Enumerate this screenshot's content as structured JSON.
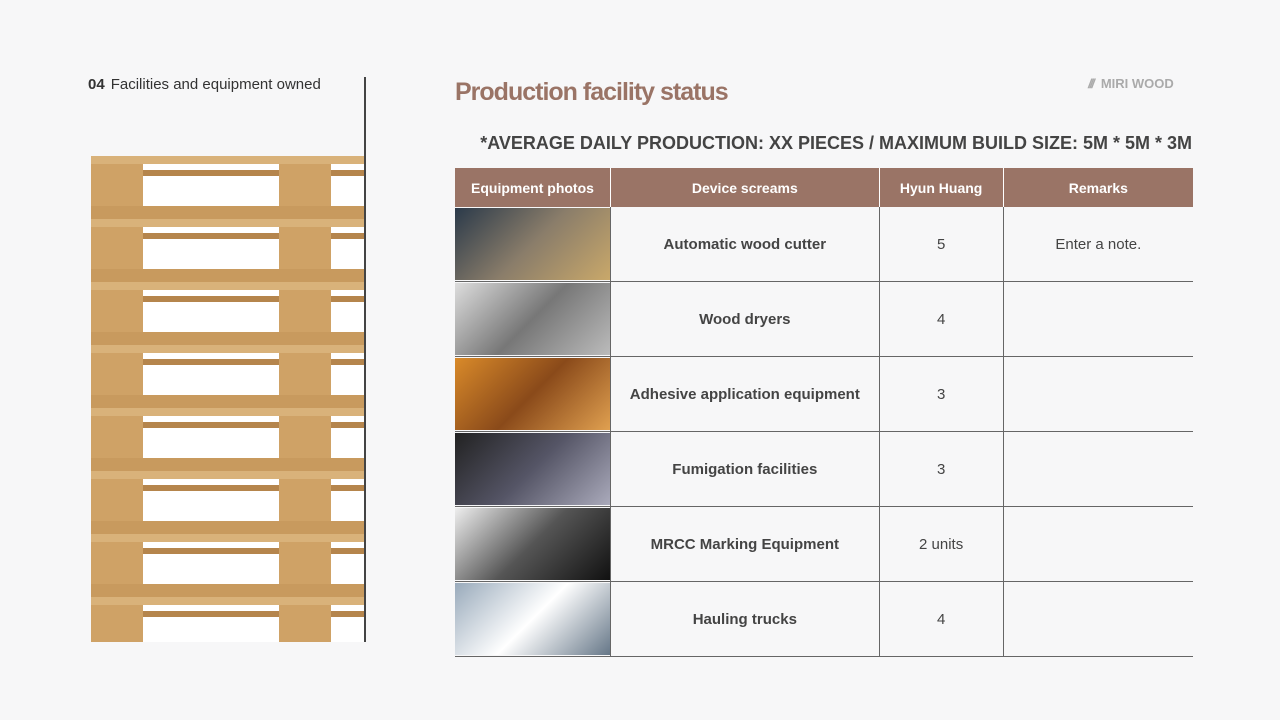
{
  "section": {
    "number": "04",
    "label": "Facilities and equipment owned"
  },
  "title": "Production facility status",
  "logo": {
    "icon": "brand-slash-icon",
    "text": "MIRI WOOD"
  },
  "subtitle": "*AVERAGE DAILY PRODUCTION: XX PIECES / MAXIMUM BUILD SIZE: 5M * 5M * 3M",
  "colors": {
    "accent": "#9a7466"
  },
  "table": {
    "headers": [
      "Equipment photos",
      "Device screams",
      "Hyun Huang",
      "Remarks"
    ],
    "rows": [
      {
        "name": "Automatic wood cutter",
        "count": "5",
        "remark": "Enter a note."
      },
      {
        "name": "Wood dryers",
        "count": "4",
        "remark": ""
      },
      {
        "name": "Adhesive application equipment",
        "count": "3",
        "remark": ""
      },
      {
        "name": "Fumigation facilities",
        "count": "3",
        "remark": ""
      },
      {
        "name": "MRCC Marking Equipment",
        "count": "2 units",
        "remark": ""
      },
      {
        "name": "Hauling trucks",
        "count": "4",
        "remark": ""
      }
    ]
  }
}
